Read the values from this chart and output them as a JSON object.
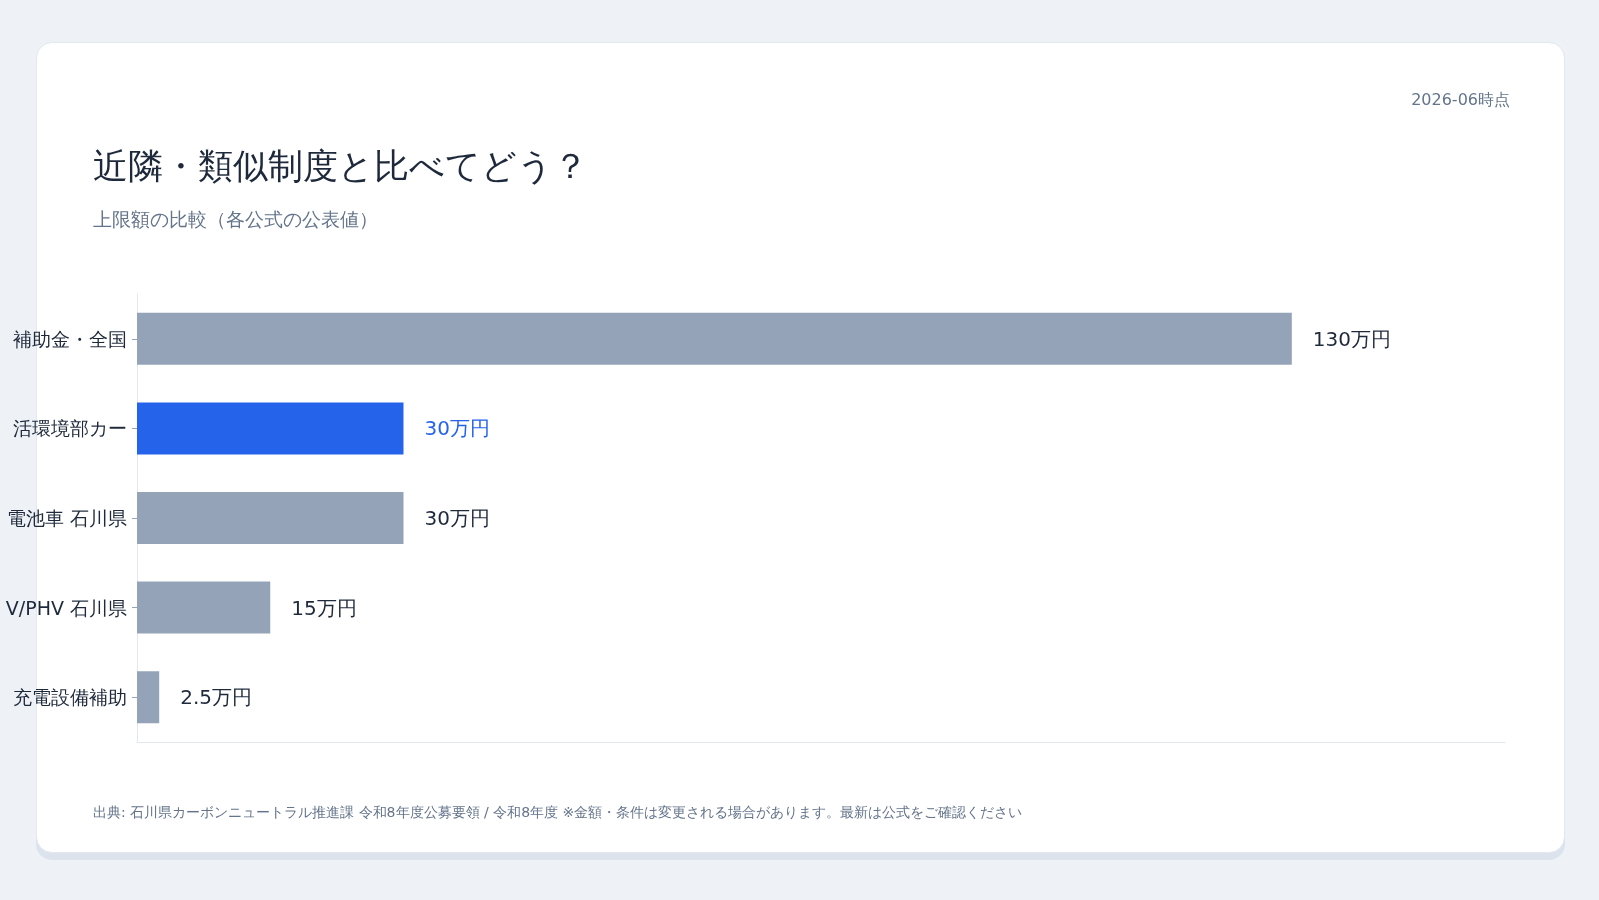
{
  "chart_data": {
    "type": "bar",
    "orientation": "horizontal",
    "title": "近隣・類似制度と比べてどう？",
    "subtitle": "上限額の比較（各公式の公表値）",
    "annotations": [
      "2026-06時点",
      "出典: 石川県カーボンニュートラル推進課 令和8年度公募要領 / 令和8年度 ※金額・条件は変更される場合があります。最新は公式をご確認ください"
    ],
    "categories": [
      "補助金・全国",
      "活環境部カー",
      "電池車 石川県",
      "V/PHV 石川県",
      "充電設備補助"
    ],
    "values": [
      130,
      30,
      30,
      15,
      2.5
    ],
    "colors": [
      "#94a3b8",
      "#2563eb",
      "#94a3b8",
      "#94a3b8",
      "#94a3b8"
    ],
    "value_labels": [
      "130万円",
      "30万円",
      "30万円",
      "15万円",
      "2.5万円"
    ],
    "xlim": [
      0,
      154
    ],
    "tick_labels": "y"
  }
}
